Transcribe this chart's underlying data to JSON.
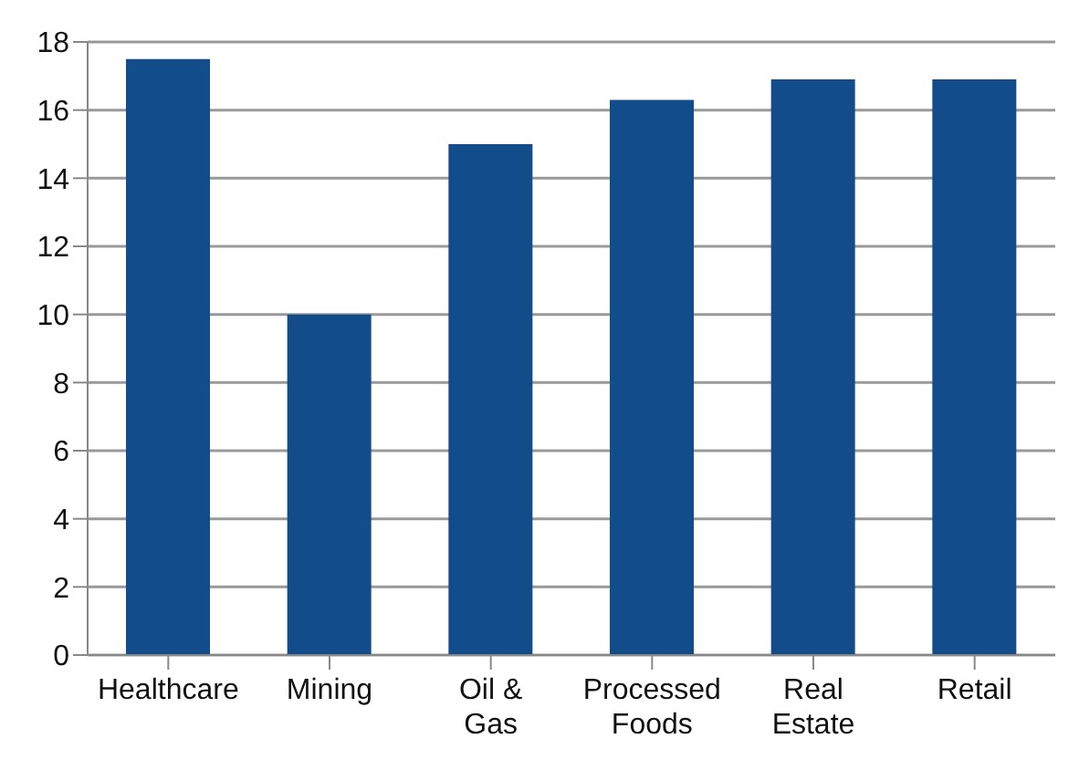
{
  "chart_data": {
    "type": "bar",
    "categories": [
      "Healthcare",
      "Mining",
      "Oil & Gas",
      "Processed Foods",
      "Real Estate",
      "Retail"
    ],
    "values": [
      17.5,
      10,
      15,
      16.3,
      16.9,
      16.9
    ],
    "color": "#124c8a",
    "ylim": [
      0,
      18
    ],
    "yticks": [
      0,
      2,
      4,
      6,
      8,
      10,
      12,
      14,
      16,
      18
    ],
    "grid": "y",
    "legend": false
  }
}
